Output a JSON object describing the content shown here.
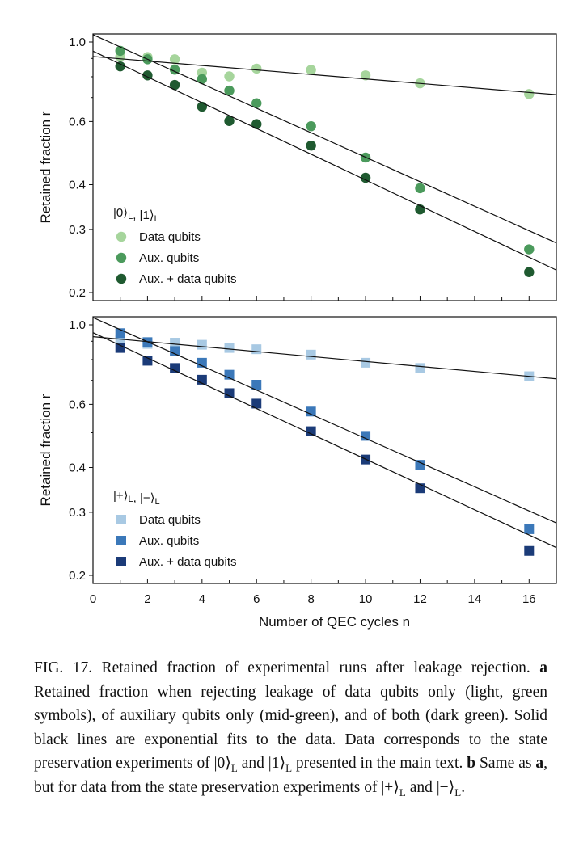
{
  "chart_data": [
    {
      "type": "scatter",
      "panel": "a",
      "state_label_parts": [
        [
          "|0⟩",
          "L"
        ],
        [
          ", |1⟩",
          "L"
        ]
      ],
      "ylabel": "Retained fraction r",
      "xlabel": "",
      "yscale": "log",
      "xlim": [
        0,
        17
      ],
      "ylim": [
        0.19,
        1.05
      ],
      "yticks": [
        1.0,
        0.6,
        0.4,
        0.3,
        0.2
      ],
      "ytick_labels": [
        "1.0",
        "0.6",
        "0.4",
        "0.3",
        "0.2"
      ],
      "marker": "circle",
      "legend_position": "bottom-left",
      "x": [
        1,
        2,
        3,
        4,
        5,
        6,
        8,
        10,
        12,
        16
      ],
      "series": [
        {
          "name": "Data qubits",
          "color": "#a6d59c",
          "values": [
            0.91,
            0.908,
            0.895,
            0.821,
            0.802,
            0.843,
            0.836,
            0.807,
            0.767,
            0.716
          ],
          "fit": [
            0.911,
            0.713
          ]
        },
        {
          "name": "Aux. qubits",
          "color": "#4b9a5c",
          "values": [
            0.945,
            0.895,
            0.837,
            0.788,
            0.732,
            0.675,
            0.582,
            0.476,
            0.391,
            0.264
          ],
          "fit": [
            1.048,
            0.275
          ]
        },
        {
          "name": "Aux. + data qubits",
          "color": "#1f5a30",
          "values": [
            0.855,
            0.807,
            0.759,
            0.66,
            0.602,
            0.59,
            0.514,
            0.418,
            0.341,
            0.228
          ],
          "fit": [
            0.943,
            0.231
          ]
        }
      ]
    },
    {
      "type": "scatter",
      "panel": "b",
      "state_label_parts": [
        [
          "|+⟩",
          "L"
        ],
        [
          ", |−⟩",
          "L"
        ]
      ],
      "ylabel": "Retained fraction r",
      "xlabel": "Number of QEC cycles n",
      "yscale": "log",
      "xlim": [
        0,
        17
      ],
      "ylim": [
        0.19,
        1.05
      ],
      "yticks": [
        1.0,
        0.6,
        0.4,
        0.3,
        0.2
      ],
      "ytick_labels": [
        "1.0",
        "0.6",
        "0.4",
        "0.3",
        "0.2"
      ],
      "xticks": [
        0,
        2,
        4,
        6,
        8,
        10,
        12,
        14,
        16
      ],
      "xtick_labels": [
        "0",
        "2",
        "4",
        "6",
        "8",
        "10",
        "12",
        "14",
        "16"
      ],
      "marker": "square",
      "legend_position": "bottom-left",
      "x": [
        1,
        2,
        3,
        4,
        5,
        6,
        8,
        10,
        12,
        16
      ],
      "series": [
        {
          "name": "Data qubits",
          "color": "#a8c9e3",
          "values": [
            0.908,
            0.885,
            0.892,
            0.88,
            0.862,
            0.855,
            0.826,
            0.784,
            0.758,
            0.719
          ],
          "fit": [
            0.927,
            0.707
          ]
        },
        {
          "name": "Aux. qubits",
          "color": "#3b78b9",
          "values": [
            0.948,
            0.895,
            0.845,
            0.784,
            0.726,
            0.681,
            0.573,
            0.49,
            0.407,
            0.269
          ],
          "fit": [
            1.048,
            0.28
          ]
        },
        {
          "name": "Aux. + data qubits",
          "color": "#1b3b78",
          "values": [
            0.862,
            0.794,
            0.758,
            0.703,
            0.645,
            0.603,
            0.505,
            0.421,
            0.35,
            0.234
          ],
          "fit": [
            0.951,
            0.239
          ]
        }
      ]
    }
  ],
  "caption": {
    "segments": [
      {
        "t": "FIG. 17. Retained fraction of experimental runs after leakage rejection. "
      },
      {
        "t": "a",
        "s": "b"
      },
      {
        "t": " Retained fraction when rejecting leakage of data qubits only (light, green symbols), of auxiliary qubits only (mid-green), and of both (dark green). Solid black lines are exponential fits to the data. Data corresponds to the state preservation experiments of |0⟩"
      },
      {
        "t": "L",
        "s": "sub"
      },
      {
        "t": " and |1⟩"
      },
      {
        "t": "L",
        "s": "sub"
      },
      {
        "t": " presented in the main text. "
      },
      {
        "t": "b",
        "s": "b"
      },
      {
        "t": " Same as "
      },
      {
        "t": "a",
        "s": "b"
      },
      {
        "t": ", but for data from the state preser­vation experiments of |+⟩"
      },
      {
        "t": "L",
        "s": "sub"
      },
      {
        "t": " and |−⟩"
      },
      {
        "t": "L",
        "s": "sub"
      },
      {
        "t": "."
      }
    ]
  }
}
